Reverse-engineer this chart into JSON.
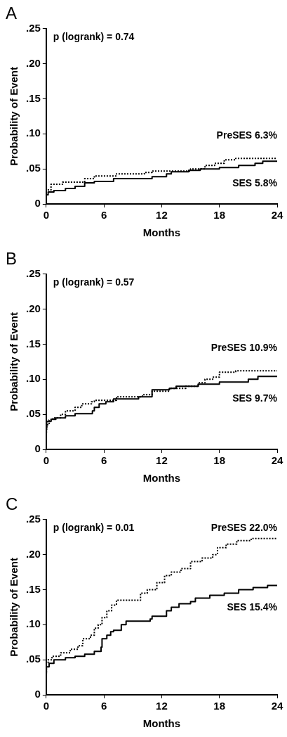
{
  "chart_data": [
    {
      "type": "step",
      "title": "A",
      "xlabel": "Months",
      "ylabel": "Probability of Event",
      "annotations": [
        "p (logrank) = 0.74"
      ],
      "xlim": [
        0,
        24
      ],
      "xticks": [
        0,
        6,
        12,
        18,
        24
      ],
      "ylim": [
        0,
        0.25
      ],
      "yticks": [
        {
          "value": 0,
          "label": "0"
        },
        {
          "value": 0.05,
          "label": ".05"
        },
        {
          "value": 0.1,
          "label": ".10"
        },
        {
          "value": 0.15,
          "label": ".15"
        },
        {
          "value": 0.2,
          "label": ".20"
        },
        {
          "value": 0.25,
          "label": ".25"
        }
      ],
      "grid": false,
      "legend": false,
      "marker": "none",
      "series": [
        {
          "name": "PreSES 6.3%",
          "color": "#000000",
          "line_style": "dotted",
          "x": [
            0,
            0.5,
            1.7,
            4,
            5,
            7.3,
            10.2,
            11,
            15,
            16.5,
            17.5,
            18.5,
            19.7,
            21,
            24
          ],
          "values": [
            0.01,
            0.02,
            0.028,
            0.031,
            0.036,
            0.04,
            0.043,
            0.045,
            0.047,
            0.05,
            0.055,
            0.058,
            0.063,
            0.065,
            0.065
          ]
        },
        {
          "name": "SES 5.8%",
          "color": "#000000",
          "line_style": "solid",
          "x": [
            0,
            0.2,
            0.8,
            2,
            3,
            4,
            5,
            7,
            11,
            12.5,
            13,
            14.8,
            16,
            18,
            20,
            21.7,
            22.5,
            23.8,
            24
          ],
          "values": [
            0.01,
            0.013,
            0.017,
            0.019,
            0.022,
            0.025,
            0.03,
            0.032,
            0.036,
            0.039,
            0.043,
            0.046,
            0.048,
            0.05,
            0.052,
            0.055,
            0.058,
            0.061,
            0.061
          ]
        }
      ]
    },
    {
      "type": "step",
      "title": "B",
      "xlabel": "Months",
      "ylabel": "Probability of Event",
      "annotations": [
        "p (logrank) = 0.57"
      ],
      "xlim": [
        0,
        24
      ],
      "xticks": [
        0,
        6,
        12,
        18,
        24
      ],
      "ylim": [
        0,
        0.25
      ],
      "yticks": [
        {
          "value": 0,
          "label": "0"
        },
        {
          "value": 0.05,
          "label": ".05"
        },
        {
          "value": 0.1,
          "label": ".10"
        },
        {
          "value": 0.15,
          "label": ".15"
        },
        {
          "value": 0.2,
          "label": ".20"
        },
        {
          "value": 0.25,
          "label": ".25"
        }
      ],
      "grid": false,
      "legend": false,
      "marker": "none",
      "series": [
        {
          "name": "PreSES 10.9%",
          "color": "#000000",
          "line_style": "dotted",
          "x": [
            0,
            0.05,
            0.3,
            0.7,
            1.5,
            2,
            3,
            3.7,
            4.7,
            5,
            7.3,
            10,
            11,
            12.8,
            14.5,
            15.8,
            16.5,
            17.3,
            18,
            19.7,
            21,
            24
          ],
          "values": [
            0,
            0.025,
            0.035,
            0.042,
            0.045,
            0.05,
            0.055,
            0.06,
            0.065,
            0.068,
            0.07,
            0.075,
            0.078,
            0.083,
            0.087,
            0.09,
            0.095,
            0.1,
            0.103,
            0.11,
            0.112,
            0.112
          ]
        },
        {
          "name": "SES 9.7%",
          "color": "#000000",
          "line_style": "solid",
          "x": [
            0,
            0.05,
            0.5,
            1,
            2,
            3,
            4.8,
            5,
            5.5,
            6.2,
            7,
            9.6,
            11,
            12.8,
            13.5,
            15.8,
            18,
            21,
            22,
            23.8,
            24
          ],
          "values": [
            0,
            0.03,
            0.04,
            0.043,
            0.045,
            0.048,
            0.051,
            0.055,
            0.06,
            0.065,
            0.068,
            0.072,
            0.075,
            0.085,
            0.087,
            0.09,
            0.093,
            0.096,
            0.1,
            0.104,
            0.104
          ]
        }
      ]
    },
    {
      "type": "step",
      "title": "C",
      "xlabel": "Months",
      "ylabel": "Probability of Event",
      "annotations": [
        "p (logrank) = 0.01"
      ],
      "xlim": [
        0,
        24
      ],
      "xticks": [
        0,
        6,
        12,
        18,
        24
      ],
      "ylim": [
        0,
        0.25
      ],
      "yticks": [
        {
          "value": 0,
          "label": "0"
        },
        {
          "value": 0.05,
          "label": ".05"
        },
        {
          "value": 0.1,
          "label": ".10"
        },
        {
          "value": 0.15,
          "label": ".15"
        },
        {
          "value": 0.2,
          "label": ".20"
        },
        {
          "value": 0.25,
          "label": ".25"
        }
      ],
      "grid": false,
      "legend": false,
      "marker": "none",
      "series": [
        {
          "name": "PreSES 22.0%",
          "color": "#000000",
          "line_style": "dotted",
          "x": [
            0,
            0.02,
            0.2,
            0.6,
            1.5,
            2.5,
            3.3,
            3.8,
            4.6,
            5,
            5.4,
            5.8,
            6.3,
            6.8,
            7.3,
            9.8,
            10.5,
            11.5,
            12.3,
            13,
            14,
            15,
            16.2,
            17.3,
            17.8,
            18.7,
            19.8,
            21.3,
            23.8,
            24
          ],
          "values": [
            0,
            0.03,
            0.045,
            0.05,
            0.055,
            0.06,
            0.065,
            0.07,
            0.08,
            0.085,
            0.095,
            0.1,
            0.11,
            0.12,
            0.128,
            0.135,
            0.145,
            0.15,
            0.16,
            0.17,
            0.175,
            0.18,
            0.19,
            0.195,
            0.2,
            0.21,
            0.215,
            0.22,
            0.223,
            0.223
          ]
        },
        {
          "name": "SES 15.4%",
          "color": "#000000",
          "line_style": "solid",
          "x": [
            0,
            0.02,
            0.3,
            0.8,
            2,
            3,
            4,
            5,
            5.7,
            5.8,
            6.3,
            6.7,
            7,
            7.8,
            8.3,
            10.8,
            11,
            12.5,
            13,
            13.8,
            15,
            15.5,
            17,
            18.5,
            20,
            21.5,
            23,
            23.8,
            24
          ],
          "values": [
            0,
            0.03,
            0.04,
            0.045,
            0.05,
            0.053,
            0.055,
            0.058,
            0.062,
            0.068,
            0.08,
            0.085,
            0.09,
            0.092,
            0.1,
            0.105,
            0.108,
            0.112,
            0.12,
            0.125,
            0.13,
            0.133,
            0.138,
            0.142,
            0.145,
            0.15,
            0.153,
            0.156,
            0.156
          ]
        }
      ]
    }
  ]
}
